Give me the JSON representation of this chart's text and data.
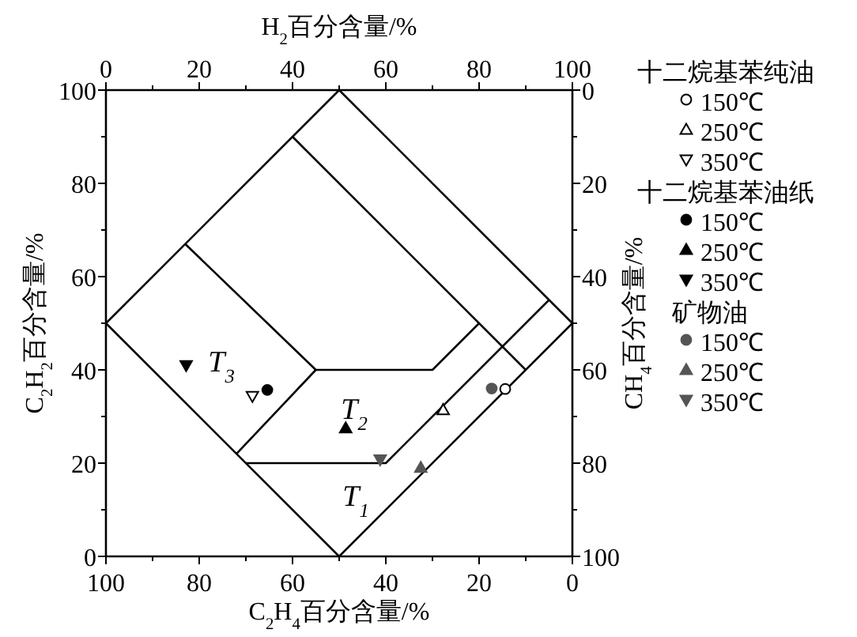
{
  "chart_data": {
    "type": "scatter",
    "xlabel": "C$_{2}$H$_{4}$百分含量/%",
    "ylabel": "C$_{2}$H$_{2}$百分含量/%",
    "x2label": "H$_{2}$百分含量/%",
    "y2label": "CH$_{4}$百分含量/%",
    "xlim": [
      100,
      0
    ],
    "xticks": [
      0,
      {
        "value": 10,
        "label": null
      },
      20,
      {
        "value": 30,
        "label": null
      },
      40,
      {
        "value": 50,
        "label": null
      },
      60,
      {
        "value": 70,
        "label": null
      },
      80,
      {
        "value": 90,
        "label": null
      },
      100
    ],
    "ylim": [
      0,
      100
    ],
    "yticks": [
      0,
      {
        "value": 10,
        "label": null
      },
      20,
      {
        "value": 30,
        "label": null
      },
      40,
      {
        "value": 50,
        "label": null
      },
      60,
      {
        "value": 70,
        "label": null
      },
      80,
      {
        "value": 90,
        "label": null
      },
      100
    ],
    "x2lim": [
      0,
      100
    ],
    "x2ticks": [
      0,
      {
        "value": 10,
        "label": null
      },
      20,
      {
        "value": 30,
        "label": null
      },
      40,
      {
        "value": 50,
        "label": null
      },
      60,
      {
        "value": 70,
        "label": null
      },
      80,
      {
        "value": 90,
        "label": null
      },
      100
    ],
    "y2lim": [
      100,
      0
    ],
    "y2ticks": [
      0,
      {
        "value": 10,
        "label": null
      },
      20,
      {
        "value": 30,
        "label": null
      },
      40,
      {
        "value": 50,
        "label": null
      },
      60,
      {
        "value": 70,
        "label": null
      },
      80,
      {
        "value": 90,
        "label": null
      },
      100
    ],
    "legend": "right",
    "annotations": [
      "T$_{3}$",
      "T$_{2}$",
      "T$_{1}$",
      "十二烷基苯纯油",
      "十二烷基苯油纸",
      "矿物油"
    ],
    "series": [
      {
        "type": "line",
        "color": "#000000",
        "x": [
          100,
          50,
          0
        ],
        "values": [
          50,
          100,
          50
        ]
      },
      {
        "type": "line",
        "color": "#000000",
        "x": [
          100,
          50,
          0
        ],
        "values": [
          50,
          0,
          50
        ]
      },
      {
        "type": "line",
        "color": "#000000",
        "x": [
          60,
          10
        ],
        "values": [
          90,
          40
        ]
      },
      {
        "type": "line",
        "color": "#000000",
        "x": [
          83,
          55,
          30,
          20
        ],
        "values": [
          67,
          40,
          40,
          50
        ]
      },
      {
        "type": "line",
        "color": "#000000",
        "x": [
          55,
          72
        ],
        "values": [
          40,
          22
        ]
      },
      {
        "type": "line",
        "color": "#000000",
        "x": [
          70,
          40,
          5
        ],
        "values": [
          20,
          20,
          55
        ]
      },
      {
        "name": "150℃",
        "color": "#000000",
        "marker": "circle-open",
        "x": [
          14.4
        ],
        "values": [
          35.9
        ]
      },
      {
        "name": "250℃",
        "color": "#000000",
        "marker": "triangle-open",
        "x": [
          27.7
        ],
        "values": [
          31.4
        ]
      },
      {
        "name": "350℃",
        "color": "#000000",
        "marker": "triangle-down-open",
        "x": [
          68.6
        ],
        "values": [
          34.4
        ]
      },
      {
        "name": "150℃",
        "color": "#000000",
        "marker": "circle",
        "x": [
          65.4
        ],
        "values": [
          35.7
        ]
      },
      {
        "name": "250℃",
        "color": "#000000",
        "marker": "triangle",
        "x": [
          48.6
        ],
        "values": [
          27.5
        ]
      },
      {
        "name": "350℃",
        "color": "#000000",
        "marker": "triangle-down",
        "x": [
          82.8
        ],
        "values": [
          41.0
        ]
      },
      {
        "name": "150℃",
        "color": "#555555",
        "marker": "circle",
        "x": [
          17.3
        ],
        "values": [
          36.0
        ]
      },
      {
        "name": "250℃",
        "color": "#555555",
        "marker": "triangle",
        "x": [
          32.5
        ],
        "values": [
          19.0
        ]
      },
      {
        "name": "350℃",
        "color": "#555555",
        "marker": "triangle-down",
        "x": [
          41.2
        ],
        "values": [
          20.8
        ]
      }
    ]
  }
}
